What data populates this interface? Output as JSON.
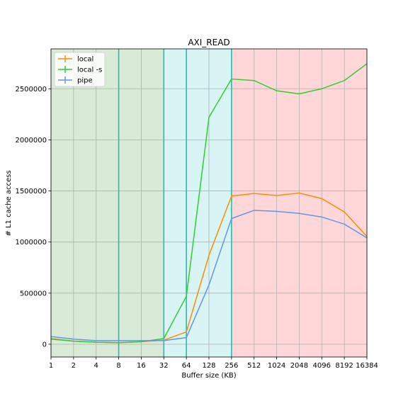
{
  "chart_data": {
    "type": "line",
    "title": "AXI_READ",
    "xlabel": "Buffer size (KB)",
    "ylabel": "# L1 cache access",
    "x_scale": "log2",
    "x": [
      1,
      2,
      4,
      8,
      16,
      32,
      64,
      128,
      256,
      512,
      1024,
      2048,
      4096,
      8192,
      16384
    ],
    "x_tick_labels": [
      "1",
      "2",
      "4",
      "8",
      "16",
      "32",
      "64",
      "128",
      "256",
      "512",
      "1024",
      "2048",
      "4096",
      "8192",
      "16384"
    ],
    "xlim": [
      1,
      16384
    ],
    "ylim": [
      -125000,
      2890000
    ],
    "y_ticks": [
      0,
      500000,
      1000000,
      1500000,
      2000000,
      2500000
    ],
    "y_tick_labels": [
      "0",
      "500000",
      "1000000",
      "1500000",
      "2000000",
      "2500000"
    ],
    "grid": true,
    "legend_position": "top-left",
    "series": [
      {
        "name": "local",
        "color": "#ff8c00",
        "values": [
          55000,
          30000,
          20000,
          15000,
          25000,
          40000,
          120000,
          870000,
          1450000,
          1475000,
          1455000,
          1480000,
          1425000,
          1295000,
          1055000
        ]
      },
      {
        "name": "local -s",
        "color": "#32cd32",
        "values": [
          50000,
          30000,
          20000,
          15000,
          25000,
          55000,
          470000,
          2220000,
          2595000,
          2580000,
          2480000,
          2450000,
          2500000,
          2580000,
          2745000
        ]
      },
      {
        "name": "pipe",
        "color": "#6495ed",
        "values": [
          75000,
          50000,
          35000,
          35000,
          35000,
          35000,
          65000,
          580000,
          1230000,
          1310000,
          1300000,
          1280000,
          1245000,
          1175000,
          1040000
        ]
      }
    ],
    "regions": [
      {
        "from": 1,
        "to": 32,
        "color": "#d9ead7"
      },
      {
        "from": 32,
        "to": 256,
        "color": "#d9f4f4"
      },
      {
        "from": 256,
        "to": 16384,
        "color": "#ffd7d9"
      }
    ],
    "vlines": [
      8,
      32,
      64,
      256
    ],
    "vline_color": "#20c0b0"
  }
}
